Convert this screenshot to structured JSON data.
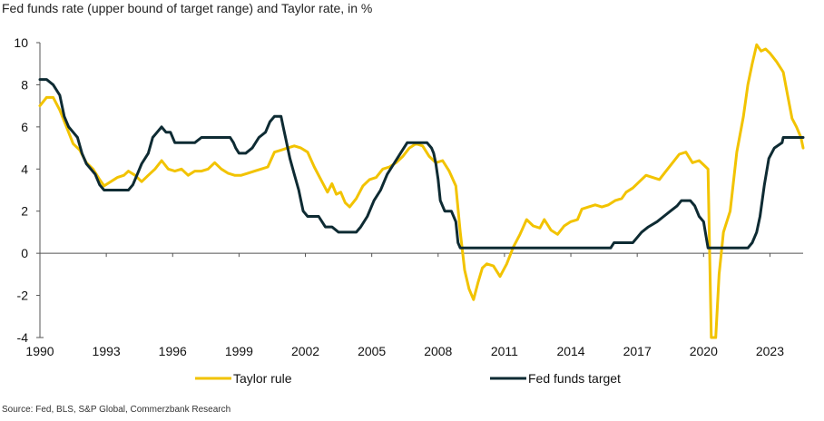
{
  "title": "Fed funds rate (upper bound of target range) and Taylor rate, in %",
  "source": "Source: Fed, BLS, S&P Global, Commerzbank Research",
  "chart_data": {
    "type": "line",
    "xlim": [
      1990,
      2024.5
    ],
    "ylim": [
      -4,
      10
    ],
    "y_ticks": [
      "10",
      "8",
      "6",
      "4",
      "2",
      "0",
      "-2",
      "-4"
    ],
    "x_ticks": [
      "1990",
      "1993",
      "1996",
      "1999",
      "2002",
      "2005",
      "2008",
      "2011",
      "2014",
      "2017",
      "2020",
      "2023"
    ],
    "grid": false,
    "legend": "bottom",
    "series": [
      {
        "name": "Taylor rule",
        "color": "#f2c300",
        "points": [
          [
            1990.0,
            7.0
          ],
          [
            1990.3,
            7.4
          ],
          [
            1990.6,
            7.4
          ],
          [
            1990.9,
            6.8
          ],
          [
            1991.2,
            6.0
          ],
          [
            1991.5,
            5.2
          ],
          [
            1991.8,
            4.9
          ],
          [
            1992.1,
            4.3
          ],
          [
            1992.4,
            4.0
          ],
          [
            1992.7,
            3.5
          ],
          [
            1992.9,
            3.2
          ],
          [
            1993.2,
            3.4
          ],
          [
            1993.5,
            3.6
          ],
          [
            1993.8,
            3.7
          ],
          [
            1994.0,
            3.9
          ],
          [
            1994.3,
            3.7
          ],
          [
            1994.6,
            3.4
          ],
          [
            1994.9,
            3.7
          ],
          [
            1995.2,
            4.0
          ],
          [
            1995.5,
            4.4
          ],
          [
            1995.8,
            4.0
          ],
          [
            1996.1,
            3.9
          ],
          [
            1996.4,
            4.0
          ],
          [
            1996.7,
            3.7
          ],
          [
            1997.0,
            3.9
          ],
          [
            1997.3,
            3.9
          ],
          [
            1997.6,
            4.0
          ],
          [
            1997.9,
            4.3
          ],
          [
            1998.2,
            4.0
          ],
          [
            1998.5,
            3.8
          ],
          [
            1998.8,
            3.7
          ],
          [
            1999.1,
            3.7
          ],
          [
            1999.4,
            3.8
          ],
          [
            1999.7,
            3.9
          ],
          [
            2000.0,
            4.0
          ],
          [
            2000.3,
            4.1
          ],
          [
            2000.6,
            4.8
          ],
          [
            2000.9,
            4.9
          ],
          [
            2001.2,
            5.0
          ],
          [
            2001.5,
            5.1
          ],
          [
            2001.8,
            5.0
          ],
          [
            2002.1,
            4.8
          ],
          [
            2002.4,
            4.1
          ],
          [
            2002.7,
            3.5
          ],
          [
            2003.0,
            2.9
          ],
          [
            2003.2,
            3.3
          ],
          [
            2003.4,
            2.8
          ],
          [
            2003.6,
            2.9
          ],
          [
            2003.8,
            2.4
          ],
          [
            2004.0,
            2.2
          ],
          [
            2004.3,
            2.6
          ],
          [
            2004.6,
            3.2
          ],
          [
            2004.9,
            3.5
          ],
          [
            2005.2,
            3.6
          ],
          [
            2005.5,
            4.0
          ],
          [
            2005.8,
            4.1
          ],
          [
            2006.1,
            4.3
          ],
          [
            2006.4,
            4.6
          ],
          [
            2006.7,
            5.0
          ],
          [
            2007.0,
            5.2
          ],
          [
            2007.3,
            5.1
          ],
          [
            2007.6,
            4.6
          ],
          [
            2007.9,
            4.3
          ],
          [
            2008.2,
            4.4
          ],
          [
            2008.5,
            3.9
          ],
          [
            2008.8,
            3.2
          ],
          [
            2009.0,
            1.0
          ],
          [
            2009.2,
            -0.8
          ],
          [
            2009.4,
            -1.7
          ],
          [
            2009.6,
            -2.2
          ],
          [
            2009.8,
            -1.4
          ],
          [
            2010.0,
            -0.7
          ],
          [
            2010.2,
            -0.5
          ],
          [
            2010.5,
            -0.6
          ],
          [
            2010.8,
            -1.1
          ],
          [
            2011.1,
            -0.5
          ],
          [
            2011.4,
            0.3
          ],
          [
            2011.7,
            0.9
          ],
          [
            2012.0,
            1.6
          ],
          [
            2012.3,
            1.3
          ],
          [
            2012.6,
            1.2
          ],
          [
            2012.8,
            1.6
          ],
          [
            2013.1,
            1.1
          ],
          [
            2013.4,
            0.9
          ],
          [
            2013.7,
            1.3
          ],
          [
            2014.0,
            1.5
          ],
          [
            2014.3,
            1.6
          ],
          [
            2014.5,
            2.1
          ],
          [
            2014.8,
            2.2
          ],
          [
            2015.1,
            2.3
          ],
          [
            2015.4,
            2.2
          ],
          [
            2015.7,
            2.3
          ],
          [
            2016.0,
            2.5
          ],
          [
            2016.3,
            2.6
          ],
          [
            2016.5,
            2.9
          ],
          [
            2016.8,
            3.1
          ],
          [
            2017.1,
            3.4
          ],
          [
            2017.4,
            3.7
          ],
          [
            2017.7,
            3.6
          ],
          [
            2018.0,
            3.5
          ],
          [
            2018.3,
            3.9
          ],
          [
            2018.6,
            4.3
          ],
          [
            2018.9,
            4.7
          ],
          [
            2019.2,
            4.8
          ],
          [
            2019.5,
            4.3
          ],
          [
            2019.8,
            4.4
          ],
          [
            2020.0,
            4.2
          ],
          [
            2020.2,
            4.0
          ],
          [
            2020.35,
            -4.0
          ],
          [
            2020.55,
            -4.0
          ],
          [
            2020.7,
            -1.0
          ],
          [
            2020.9,
            1.0
          ],
          [
            2021.2,
            2.0
          ],
          [
            2021.5,
            4.8
          ],
          [
            2021.8,
            6.5
          ],
          [
            2022.0,
            8.0
          ],
          [
            2022.2,
            9.0
          ],
          [
            2022.4,
            9.9
          ],
          [
            2022.6,
            9.6
          ],
          [
            2022.8,
            9.7
          ],
          [
            2023.0,
            9.5
          ],
          [
            2023.3,
            9.1
          ],
          [
            2023.6,
            8.6
          ],
          [
            2023.8,
            7.5
          ],
          [
            2024.0,
            6.4
          ],
          [
            2024.2,
            6.0
          ],
          [
            2024.4,
            5.5
          ],
          [
            2024.5,
            5.0
          ]
        ]
      },
      {
        "name": "Fed funds target",
        "color": "#0e2b33",
        "points": [
          [
            1990.0,
            8.25
          ],
          [
            1990.3,
            8.25
          ],
          [
            1990.6,
            8.0
          ],
          [
            1990.9,
            7.5
          ],
          [
            1991.1,
            6.5
          ],
          [
            1991.3,
            6.0
          ],
          [
            1991.5,
            5.75
          ],
          [
            1991.7,
            5.5
          ],
          [
            1991.9,
            4.75
          ],
          [
            1992.1,
            4.25
          ],
          [
            1992.3,
            4.0
          ],
          [
            1992.5,
            3.75
          ],
          [
            1992.7,
            3.25
          ],
          [
            1992.9,
            3.0
          ],
          [
            1993.5,
            3.0
          ],
          [
            1994.0,
            3.0
          ],
          [
            1994.2,
            3.25
          ],
          [
            1994.4,
            3.75
          ],
          [
            1994.6,
            4.25
          ],
          [
            1994.9,
            4.75
          ],
          [
            1995.1,
            5.5
          ],
          [
            1995.3,
            5.75
          ],
          [
            1995.5,
            6.0
          ],
          [
            1995.7,
            5.75
          ],
          [
            1995.9,
            5.75
          ],
          [
            1996.1,
            5.25
          ],
          [
            1996.5,
            5.25
          ],
          [
            1997.0,
            5.25
          ],
          [
            1997.3,
            5.5
          ],
          [
            1998.0,
            5.5
          ],
          [
            1998.6,
            5.5
          ],
          [
            1998.75,
            5.25
          ],
          [
            1998.85,
            5.0
          ],
          [
            1999.0,
            4.75
          ],
          [
            1999.3,
            4.75
          ],
          [
            1999.6,
            5.0
          ],
          [
            1999.9,
            5.5
          ],
          [
            2000.2,
            5.75
          ],
          [
            2000.4,
            6.25
          ],
          [
            2000.6,
            6.5
          ],
          [
            2000.9,
            6.5
          ],
          [
            2001.0,
            6.0
          ],
          [
            2001.1,
            5.5
          ],
          [
            2001.3,
            4.5
          ],
          [
            2001.5,
            3.75
          ],
          [
            2001.7,
            3.0
          ],
          [
            2001.8,
            2.5
          ],
          [
            2001.9,
            2.0
          ],
          [
            2002.1,
            1.75
          ],
          [
            2002.6,
            1.75
          ],
          [
            2002.9,
            1.25
          ],
          [
            2003.2,
            1.25
          ],
          [
            2003.5,
            1.0
          ],
          [
            2004.0,
            1.0
          ],
          [
            2004.3,
            1.0
          ],
          [
            2004.5,
            1.25
          ],
          [
            2004.8,
            1.75
          ],
          [
            2005.1,
            2.5
          ],
          [
            2005.4,
            3.0
          ],
          [
            2005.7,
            3.75
          ],
          [
            2006.0,
            4.25
          ],
          [
            2006.3,
            4.75
          ],
          [
            2006.6,
            5.25
          ],
          [
            2007.0,
            5.25
          ],
          [
            2007.5,
            5.25
          ],
          [
            2007.7,
            5.0
          ],
          [
            2007.8,
            4.75
          ],
          [
            2007.9,
            4.25
          ],
          [
            2008.0,
            3.5
          ],
          [
            2008.1,
            2.5
          ],
          [
            2008.3,
            2.0
          ],
          [
            2008.6,
            2.0
          ],
          [
            2008.8,
            1.5
          ],
          [
            2008.9,
            0.5
          ],
          [
            2009.0,
            0.25
          ],
          [
            2010.0,
            0.25
          ],
          [
            2012.0,
            0.25
          ],
          [
            2014.0,
            0.25
          ],
          [
            2015.8,
            0.25
          ],
          [
            2015.95,
            0.5
          ],
          [
            2016.8,
            0.5
          ],
          [
            2017.0,
            0.75
          ],
          [
            2017.2,
            1.0
          ],
          [
            2017.5,
            1.25
          ],
          [
            2017.9,
            1.5
          ],
          [
            2018.2,
            1.75
          ],
          [
            2018.5,
            2.0
          ],
          [
            2018.8,
            2.25
          ],
          [
            2019.0,
            2.5
          ],
          [
            2019.4,
            2.5
          ],
          [
            2019.6,
            2.25
          ],
          [
            2019.8,
            1.75
          ],
          [
            2020.0,
            1.5
          ],
          [
            2020.2,
            0.25
          ],
          [
            2021.0,
            0.25
          ],
          [
            2022.0,
            0.25
          ],
          [
            2022.2,
            0.5
          ],
          [
            2022.4,
            1.0
          ],
          [
            2022.55,
            1.75
          ],
          [
            2022.75,
            3.25
          ],
          [
            2022.95,
            4.5
          ],
          [
            2023.2,
            5.0
          ],
          [
            2023.55,
            5.25
          ],
          [
            2023.6,
            5.5
          ],
          [
            2024.5,
            5.5
          ]
        ]
      }
    ]
  }
}
